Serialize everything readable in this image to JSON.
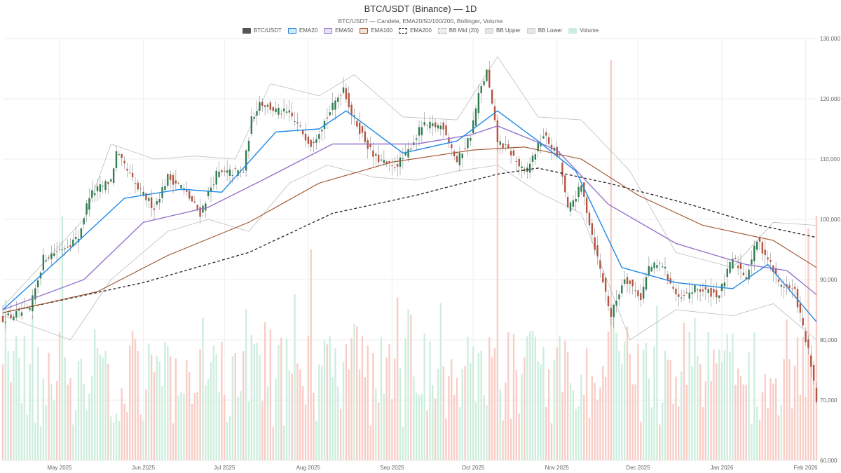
{
  "chart_data": {
    "type": "candlestick",
    "title": "BTC/USDT (Binance) — 1D",
    "subtitle": "BTC/USDT — Candele, EMA20/50/100/200, Bollinger, Volume",
    "legend": [
      {
        "key": "price",
        "label": "BTC/USDT",
        "fill": "#555555",
        "border": "#555555",
        "dashed": false
      },
      {
        "key": "ema20",
        "label": "EMA20",
        "fill": "#d6e8f7",
        "border": "#1e88e5",
        "dashed": false
      },
      {
        "key": "ema50",
        "label": "EMA50",
        "fill": "#e8e2f7",
        "border": "#9575cd",
        "dashed": false
      },
      {
        "key": "ema100",
        "label": "EMA100",
        "fill": "#f3e3d6",
        "border": "#a0522d",
        "dashed": false
      },
      {
        "key": "ema200",
        "label": "EMA200",
        "fill": "#ffffff",
        "border": "#222222",
        "dashed": true
      },
      {
        "key": "bb_mid",
        "label": "BB Mid (20)",
        "fill": "#eeeeee",
        "border": "#aaaaaa",
        "dashed": true
      },
      {
        "key": "bb_upper",
        "label": "BB Upper",
        "fill": "#e6e6e6",
        "border": "#cccccc",
        "dashed": false
      },
      {
        "key": "bb_lower",
        "label": "BB Lower",
        "fill": "#e6e6e6",
        "border": "#cccccc",
        "dashed": false
      },
      {
        "key": "volume",
        "label": "Volume",
        "fill": "#cdeedd",
        "border": "#cdeedd",
        "dashed": false
      }
    ],
    "x_ticks": [
      {
        "date": "2025-05-01",
        "label": "May 2025"
      },
      {
        "date": "2025-06-01",
        "label": "Jun 2025"
      },
      {
        "date": "2025-07-01",
        "label": "Jul 2025"
      },
      {
        "date": "2025-08-01",
        "label": "Aug 2025"
      },
      {
        "date": "2025-09-01",
        "label": "Sep 2025"
      },
      {
        "date": "2025-10-01",
        "label": "Oct 2025"
      },
      {
        "date": "2025-11-01",
        "label": "Nov 2025"
      },
      {
        "date": "2025-12-01",
        "label": "Dec 2025"
      },
      {
        "date": "2026-01-01",
        "label": "Jan 2026"
      },
      {
        "date": "2026-02-01",
        "label": "Feb 2026"
      }
    ],
    "y_ticks": [
      {
        "value": 60000,
        "label": "60,000"
      },
      {
        "value": 70000,
        "label": "70,000"
      },
      {
        "value": 80000,
        "label": "80,000"
      },
      {
        "value": 90000,
        "label": "90,000"
      },
      {
        "value": 100000,
        "label": "100,000"
      },
      {
        "value": 110000,
        "label": "110,000"
      },
      {
        "value": 120000,
        "label": "120,000"
      },
      {
        "value": 130000,
        "label": "130,000"
      }
    ],
    "xlim": [
      "2025-04-10",
      "2026-02-05"
    ],
    "ylim": [
      60000,
      130000
    ],
    "y_axis_position": "right",
    "grid": true,
    "legend_position": "top",
    "colors": {
      "up": "#2e7d4f",
      "down": "#b5533f",
      "vol_up": "#cdeedd",
      "vol_down": "#f8cdc6",
      "ema20": "#1e88e5",
      "ema50": "#9575cd",
      "ema100": "#a0522d",
      "ema200": "#222222",
      "bb": "#bdbdbd",
      "bb_mid": "#9e9e9e",
      "grid": "#eeeeee"
    },
    "price_path": [
      [
        "2025-04-10",
        83500
      ],
      [
        "2025-04-20",
        85000
      ],
      [
        "2025-04-25",
        93500
      ],
      [
        "2025-05-03",
        95500
      ],
      [
        "2025-05-08",
        97000
      ],
      [
        "2025-05-12",
        104000
      ],
      [
        "2025-05-20",
        106500
      ],
      [
        "2025-05-22",
        111000
      ],
      [
        "2025-05-30",
        105000
      ],
      [
        "2025-06-05",
        102000
      ],
      [
        "2025-06-10",
        107000
      ],
      [
        "2025-06-15",
        105500
      ],
      [
        "2025-06-22",
        101000
      ],
      [
        "2025-06-28",
        107500
      ],
      [
        "2025-07-08",
        108000
      ],
      [
        "2025-07-11",
        116500
      ],
      [
        "2025-07-14",
        119500
      ],
      [
        "2025-07-20",
        118000
      ],
      [
        "2025-07-25",
        117500
      ],
      [
        "2025-08-02",
        112500
      ],
      [
        "2025-08-08",
        117000
      ],
      [
        "2025-08-14",
        122000
      ],
      [
        "2025-08-17",
        117500
      ],
      [
        "2025-08-25",
        110500
      ],
      [
        "2025-09-01",
        108500
      ],
      [
        "2025-09-06",
        110500
      ],
      [
        "2025-09-12",
        115500
      ],
      [
        "2025-09-20",
        115500
      ],
      [
        "2025-09-25",
        109500
      ],
      [
        "2025-09-30",
        114000
      ],
      [
        "2025-10-03",
        120500
      ],
      [
        "2025-10-06",
        124500
      ],
      [
        "2025-10-10",
        113000
      ],
      [
        "2025-10-15",
        111000
      ],
      [
        "2025-10-20",
        107500
      ],
      [
        "2025-10-27",
        114000
      ],
      [
        "2025-11-02",
        110000
      ],
      [
        "2025-11-05",
        101500
      ],
      [
        "2025-11-10",
        105500
      ],
      [
        "2025-11-15",
        95500
      ],
      [
        "2025-11-21",
        84000
      ],
      [
        "2025-11-26",
        90500
      ],
      [
        "2025-12-02",
        87000
      ],
      [
        "2025-12-05",
        92000
      ],
      [
        "2025-12-10",
        92500
      ],
      [
        "2025-12-16",
        86500
      ],
      [
        "2025-12-22",
        88500
      ],
      [
        "2025-12-31",
        87500
      ],
      [
        "2026-01-05",
        93500
      ],
      [
        "2026-01-10",
        90500
      ],
      [
        "2026-01-14",
        96500
      ],
      [
        "2026-01-18",
        93500
      ],
      [
        "2026-01-22",
        89500
      ],
      [
        "2026-01-28",
        88000
      ],
      [
        "2026-02-02",
        78000
      ],
      [
        "2026-02-05",
        70000
      ]
    ],
    "ema_paths": {
      "ema20": [
        [
          "2025-04-10",
          85000
        ],
        [
          "2025-05-01",
          93500
        ],
        [
          "2025-05-25",
          103500
        ],
        [
          "2025-06-15",
          105000
        ],
        [
          "2025-06-30",
          104500
        ],
        [
          "2025-07-20",
          114500
        ],
        [
          "2025-08-05",
          115000
        ],
        [
          "2025-08-15",
          118000
        ],
        [
          "2025-09-05",
          111000
        ],
        [
          "2025-09-25",
          113000
        ],
        [
          "2025-10-10",
          118000
        ],
        [
          "2025-10-25",
          113000
        ],
        [
          "2025-11-08",
          108000
        ],
        [
          "2025-11-25",
          92000
        ],
        [
          "2025-12-15",
          89500
        ],
        [
          "2026-01-05",
          88500
        ],
        [
          "2026-01-18",
          92500
        ],
        [
          "2026-02-05",
          83000
        ]
      ],
      "ema50": [
        [
          "2025-04-10",
          85000
        ],
        [
          "2025-05-10",
          90000
        ],
        [
          "2025-06-01",
          99500
        ],
        [
          "2025-06-25",
          102000
        ],
        [
          "2025-07-15",
          106500
        ],
        [
          "2025-08-10",
          112500
        ],
        [
          "2025-09-10",
          112500
        ],
        [
          "2025-09-30",
          114000
        ],
        [
          "2025-10-10",
          115500
        ],
        [
          "2025-11-01",
          111500
        ],
        [
          "2025-11-20",
          102500
        ],
        [
          "2025-12-15",
          96000
        ],
        [
          "2026-01-10",
          92500
        ],
        [
          "2026-01-25",
          91500
        ],
        [
          "2026-02-05",
          87500
        ]
      ],
      "ema100": [
        [
          "2025-04-10",
          84500
        ],
        [
          "2025-05-15",
          88000
        ],
        [
          "2025-06-10",
          94000
        ],
        [
          "2025-07-10",
          99500
        ],
        [
          "2025-08-05",
          106000
        ],
        [
          "2025-09-01",
          109500
        ],
        [
          "2025-10-01",
          111500
        ],
        [
          "2025-10-20",
          112000
        ],
        [
          "2025-11-10",
          110000
        ],
        [
          "2025-12-01",
          104000
        ],
        [
          "2025-12-25",
          99000
        ],
        [
          "2026-01-20",
          96500
        ],
        [
          "2026-02-05",
          92000
        ]
      ],
      "ema200": [
        [
          "2025-04-10",
          84500
        ],
        [
          "2025-06-01",
          89500
        ],
        [
          "2025-07-10",
          94500
        ],
        [
          "2025-08-10",
          101000
        ],
        [
          "2025-09-10",
          104000
        ],
        [
          "2025-10-10",
          107500
        ],
        [
          "2025-10-25",
          108500
        ],
        [
          "2025-11-20",
          106000
        ],
        [
          "2025-12-20",
          102500
        ],
        [
          "2026-01-15",
          99000
        ],
        [
          "2026-02-05",
          97000
        ]
      ],
      "bb_upper": [
        [
          "2025-04-10",
          85500
        ],
        [
          "2025-05-10",
          100000
        ],
        [
          "2025-05-20",
          112500
        ],
        [
          "2025-06-05",
          110000
        ],
        [
          "2025-06-20",
          110500
        ],
        [
          "2025-07-05",
          110000
        ],
        [
          "2025-07-18",
          122500
        ],
        [
          "2025-08-05",
          120500
        ],
        [
          "2025-08-18",
          124000
        ],
        [
          "2025-09-05",
          117000
        ],
        [
          "2025-09-25",
          116500
        ],
        [
          "2025-10-10",
          127000
        ],
        [
          "2025-10-25",
          117000
        ],
        [
          "2025-11-10",
          116500
        ],
        [
          "2025-11-28",
          108000
        ],
        [
          "2025-12-15",
          94500
        ],
        [
          "2026-01-05",
          92000
        ],
        [
          "2026-01-20",
          99500
        ],
        [
          "2026-02-05",
          99000
        ]
      ],
      "bb_lower": [
        [
          "2025-04-10",
          84000
        ],
        [
          "2025-05-05",
          80000
        ],
        [
          "2025-05-20",
          90000
        ],
        [
          "2025-06-10",
          98000
        ],
        [
          "2025-06-25",
          100000
        ],
        [
          "2025-07-10",
          98000
        ],
        [
          "2025-07-25",
          106000
        ],
        [
          "2025-08-08",
          109000
        ],
        [
          "2025-08-25",
          107000
        ],
        [
          "2025-09-10",
          106500
        ],
        [
          "2025-09-25",
          108000
        ],
        [
          "2025-10-10",
          109000
        ],
        [
          "2025-10-25",
          104500
        ],
        [
          "2025-11-10",
          101000
        ],
        [
          "2025-11-28",
          80000
        ],
        [
          "2025-12-15",
          85000
        ],
        [
          "2026-01-05",
          84000
        ],
        [
          "2026-01-20",
          86000
        ],
        [
          "2026-02-05",
          80000
        ]
      ]
    },
    "volume_spikes": [
      [
        "2025-11-21",
        95
      ],
      [
        "2025-10-10",
        82
      ],
      [
        "2025-08-02",
        50
      ],
      [
        "2025-05-02",
        58
      ],
      [
        "2026-02-05",
        58
      ],
      [
        "2026-02-02",
        55
      ]
    ]
  }
}
